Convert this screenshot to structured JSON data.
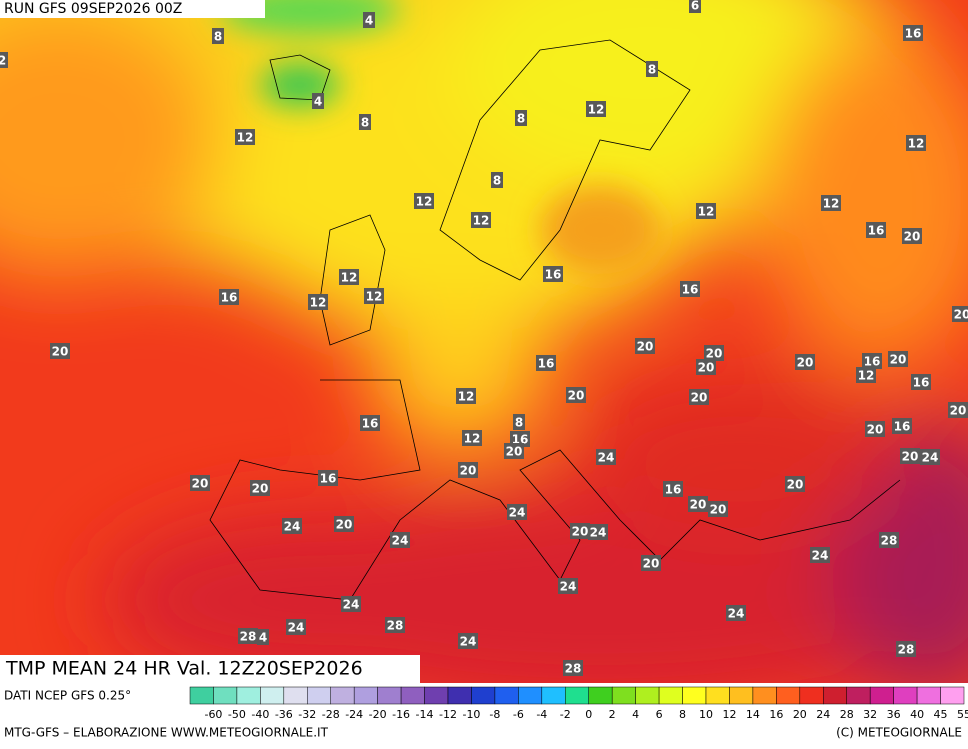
{
  "header": {
    "run": "RUN GFS 09SEP2026 00Z"
  },
  "footer": {
    "title": "TMP MEAN 24 HR Val. 12Z20SEP2026",
    "source": "DATI NCEP GFS 0.25°",
    "credit": "MTG-GFS – ELABORAZIONE WWW.METEOGIORNALE.IT",
    "copyright": "(C) METEOGIORNALE"
  },
  "scale": {
    "labels": [
      -60,
      -50,
      -40,
      -36,
      -32,
      -28,
      -24,
      -20,
      -16,
      -14,
      -12,
      -10,
      -8,
      -6,
      -4,
      -2,
      0,
      2,
      4,
      6,
      8,
      10,
      12,
      14,
      16,
      20,
      24,
      28,
      32,
      36,
      40,
      45,
      55
    ],
    "colors": [
      "#3fcf9f",
      "#6fdfbf",
      "#9fefdf",
      "#cfefef",
      "#dfdfef",
      "#cfcfef",
      "#bfb0e0",
      "#af9fdf",
      "#9f7fcf",
      "#8f5fbf",
      "#6f3faf",
      "#3f2faf",
      "#1f3fcf",
      "#1f5fef",
      "#1f8fff",
      "#1fbfff",
      "#1fdf8f",
      "#3fcf1f",
      "#7fdf1f",
      "#afef1f",
      "#dfff1f",
      "#ffff1f",
      "#ffdf1f",
      "#ffbf1f",
      "#ff8f1f",
      "#ff5f1f",
      "#ef2f1f",
      "#cf1f2f",
      "#bf1f5f",
      "#cf1f8f",
      "#df3fbf",
      "#ef6fdf",
      "#ff9fef"
    ]
  },
  "map": {
    "labels": [
      4,
      8,
      4,
      8,
      12,
      8,
      16,
      12,
      8,
      12,
      8,
      12,
      12,
      12,
      12,
      16,
      20,
      12,
      12,
      12,
      16,
      16,
      16,
      20,
      16,
      20,
      20,
      20,
      20,
      16,
      20,
      12,
      16,
      12,
      20,
      20,
      16,
      8,
      12,
      16,
      20,
      20,
      16,
      20,
      20,
      24,
      24,
      20,
      16,
      20,
      20,
      16,
      20,
      20,
      20,
      24,
      20,
      24,
      20,
      24,
      24,
      24,
      28,
      20,
      24,
      24,
      24,
      28,
      24,
      28,
      4,
      24,
      28,
      28,
      2,
      20,
      6
    ]
  }
}
